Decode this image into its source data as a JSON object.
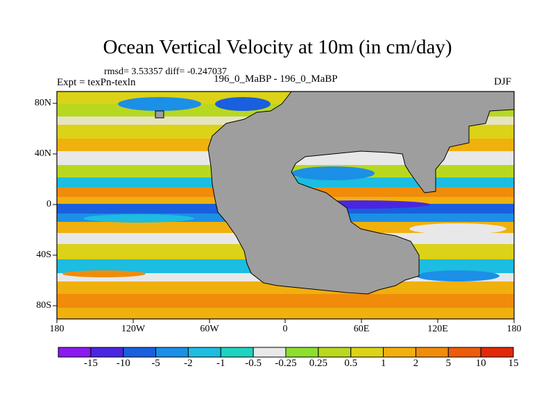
{
  "title": "Ocean Vertical Velocity at 10m (in cm/day)",
  "stats": "rmsd= 3.53357 diff= -0.247037",
  "experiment": "Expt = texPn-texln",
  "case_id": "196_0_MaBP - 196_0_MaBP",
  "season": "DJF",
  "lat_labels": [
    "80N",
    "40N",
    "0",
    "40S",
    "80S"
  ],
  "lon_labels": [
    "180",
    "120W",
    "60W",
    "0",
    "60E",
    "120E",
    "180"
  ],
  "colorbar": {
    "labels": [
      "-15",
      "-10",
      "-5",
      "-2",
      "-1",
      "-0.5",
      "-0.25",
      "0.25",
      "0.5",
      "1",
      "2",
      "5",
      "10",
      "15"
    ],
    "colors": [
      "#8a1aee",
      "#4a26e0",
      "#1a5fdd",
      "#1c8fe6",
      "#1cbde0",
      "#20d2c0",
      "#e8e8e8",
      "#8ede30",
      "#b8d820",
      "#dcd218",
      "#f0b00e",
      "#f08c0a",
      "#ec5c0a",
      "#e02a0a"
    ]
  },
  "land_color": "#9e9e9e"
}
